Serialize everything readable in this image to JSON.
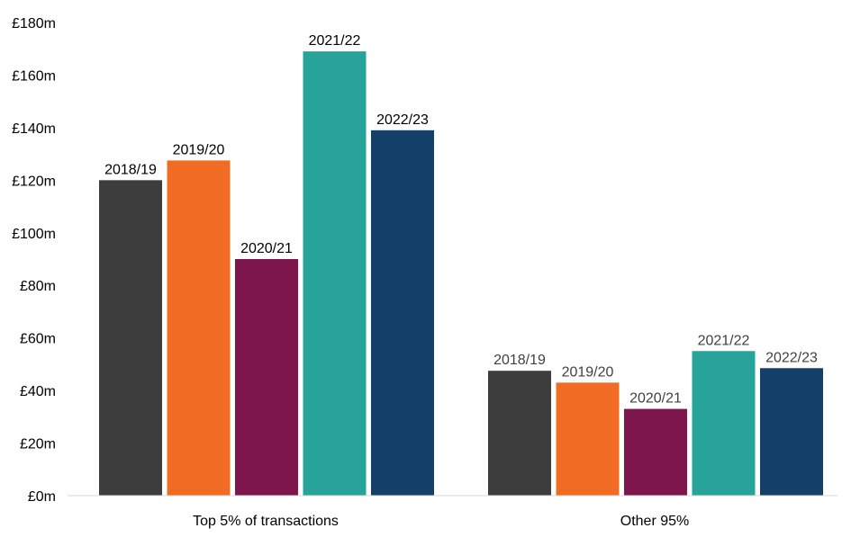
{
  "chart_data": {
    "type": "bar",
    "categories": [
      "Top 5% of transactions",
      "Other 95%"
    ],
    "series": [
      {
        "name": "2018/19",
        "values": [
          120,
          47.5
        ],
        "color": "#3d3d3d"
      },
      {
        "name": "2019/20",
        "values": [
          127.5,
          43
        ],
        "color": "#f26b24"
      },
      {
        "name": "2020/21",
        "values": [
          90,
          33
        ],
        "color": "#7d164d"
      },
      {
        "name": "2021/22",
        "values": [
          169,
          55
        ],
        "color": "#27a39a"
      },
      {
        "name": "2022/23",
        "values": [
          139,
          48.5
        ],
        "color": "#143f69"
      }
    ],
    "ylim": [
      0,
      180
    ],
    "yticks": [
      "£0m",
      "£20m",
      "£40m",
      "£60m",
      "£80m",
      "£100m",
      "£120m",
      "£140m",
      "£160m",
      "£180m"
    ],
    "ytick_values": [
      0,
      20,
      40,
      60,
      80,
      100,
      120,
      140,
      160,
      180
    ],
    "data_labels": "series name above each bar",
    "grid": false,
    "legend": "none"
  }
}
